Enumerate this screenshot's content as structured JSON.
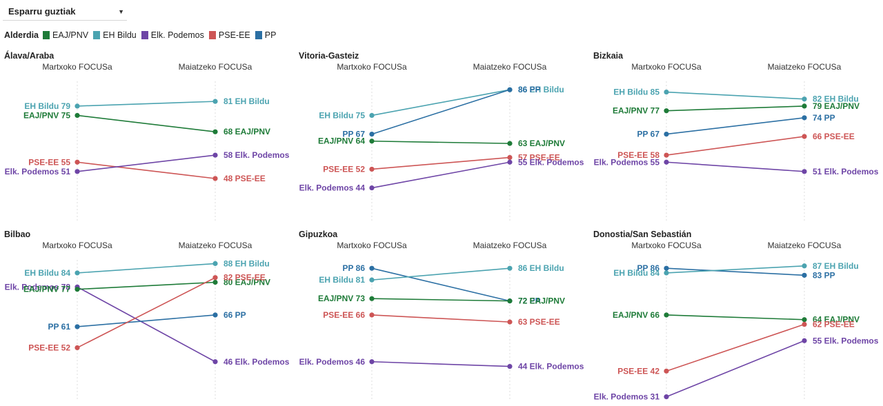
{
  "filter": {
    "label": "Esparru guztiak"
  },
  "legend": {
    "title": "Alderdia",
    "items": [
      {
        "label": "EAJ/PNV",
        "color": "#1e7b38"
      },
      {
        "label": "EH Bildu",
        "color": "#4ba3b0"
      },
      {
        "label": "Elk. Podemos",
        "color": "#6e45a6"
      },
      {
        "label": "PSE-EE",
        "color": "#cd5555"
      },
      {
        "label": "PP",
        "color": "#2b6fa3"
      }
    ]
  },
  "chart_data": [
    {
      "type": "line",
      "title": "Álava/Araba",
      "categories": [
        "Martxoko FOCUSa",
        "Maiatzeko FOCUSa"
      ],
      "series": [
        {
          "name": "EH Bildu",
          "values": [
            79,
            81
          ]
        },
        {
          "name": "EAJ/PNV",
          "values": [
            75,
            68
          ]
        },
        {
          "name": "PSE-EE",
          "values": [
            55,
            48
          ]
        },
        {
          "name": "Elk. Podemos",
          "values": [
            51,
            58
          ]
        }
      ]
    },
    {
      "type": "line",
      "title": "Vitoria-Gasteiz",
      "categories": [
        "Martxoko FOCUSa",
        "Maiatzeko FOCUSa"
      ],
      "series": [
        {
          "name": "EH Bildu",
          "values": [
            75,
            86
          ]
        },
        {
          "name": "PP",
          "values": [
            67,
            86
          ]
        },
        {
          "name": "EAJ/PNV",
          "values": [
            64,
            63
          ]
        },
        {
          "name": "PSE-EE",
          "values": [
            52,
            57
          ]
        },
        {
          "name": "Elk. Podemos",
          "values": [
            44,
            55
          ]
        }
      ]
    },
    {
      "type": "line",
      "title": "Bizkaia",
      "categories": [
        "Martxoko FOCUSa",
        "Maiatzeko FOCUSa"
      ],
      "series": [
        {
          "name": "EH Bildu",
          "values": [
            85,
            82
          ]
        },
        {
          "name": "EAJ/PNV",
          "values": [
            77,
            79
          ]
        },
        {
          "name": "PP",
          "values": [
            67,
            74
          ]
        },
        {
          "name": "PSE-EE",
          "values": [
            58,
            66
          ]
        },
        {
          "name": "Elk. Podemos",
          "values": [
            55,
            51
          ]
        }
      ]
    },
    {
      "type": "line",
      "title": "Bilbao",
      "categories": [
        "Martxoko FOCUSa",
        "Maiatzeko FOCUSa"
      ],
      "series": [
        {
          "name": "EH Bildu",
          "values": [
            84,
            88
          ]
        },
        {
          "name": "Elk. Podemos",
          "values": [
            78,
            46
          ]
        },
        {
          "name": "EAJ/PNV",
          "values": [
            77,
            80
          ]
        },
        {
          "name": "PP",
          "values": [
            61,
            66
          ]
        },
        {
          "name": "PSE-EE",
          "values": [
            52,
            82
          ]
        }
      ]
    },
    {
      "type": "line",
      "title": "Gipuzkoa",
      "categories": [
        "Martxoko FOCUSa",
        "Maiatzeko FOCUSa"
      ],
      "series": [
        {
          "name": "PP",
          "values": [
            86,
            72
          ]
        },
        {
          "name": "EH Bildu",
          "values": [
            81,
            86
          ]
        },
        {
          "name": "EAJ/PNV",
          "values": [
            73,
            72
          ]
        },
        {
          "name": "PSE-EE",
          "values": [
            66,
            63
          ]
        },
        {
          "name": "Elk. Podemos",
          "values": [
            46,
            44
          ]
        }
      ]
    },
    {
      "type": "line",
      "title": "Donostia/San Sebastián",
      "categories": [
        "Martxoko FOCUSa",
        "Maiatzeko FOCUSa"
      ],
      "series": [
        {
          "name": "PP",
          "values": [
            86,
            83
          ]
        },
        {
          "name": "EH Bildu",
          "values": [
            84,
            87
          ]
        },
        {
          "name": "EAJ/PNV",
          "values": [
            66,
            64
          ]
        },
        {
          "name": "PSE-EE",
          "values": [
            42,
            62
          ]
        },
        {
          "name": "Elk. Podemos",
          "values": [
            31,
            55
          ]
        }
      ]
    }
  ]
}
